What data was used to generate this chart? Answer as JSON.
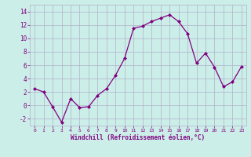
{
  "x": [
    0,
    1,
    2,
    3,
    4,
    5,
    6,
    7,
    8,
    9,
    10,
    11,
    12,
    13,
    14,
    15,
    16,
    17,
    18,
    19,
    20,
    21,
    22,
    23
  ],
  "y": [
    2.5,
    2.0,
    -0.2,
    -2.5,
    1.0,
    -0.3,
    -0.2,
    1.5,
    2.5,
    4.5,
    7.0,
    11.5,
    11.8,
    12.5,
    13.0,
    13.5,
    12.5,
    10.7,
    6.3,
    7.8,
    5.7,
    2.8,
    3.5,
    5.8
  ],
  "line_color": "#800080",
  "marker": "D",
  "marker_size": 2,
  "linewidth": 0.9,
  "xlim": [
    -0.5,
    23.5
  ],
  "ylim": [
    -3,
    15
  ],
  "yticks": [
    -2,
    0,
    2,
    4,
    6,
    8,
    10,
    12,
    14
  ],
  "xticks": [
    0,
    1,
    2,
    3,
    4,
    5,
    6,
    7,
    8,
    9,
    10,
    11,
    12,
    13,
    14,
    15,
    16,
    17,
    18,
    19,
    20,
    21,
    22,
    23
  ],
  "xlabel": "Windchill (Refroidissement éolien,°C)",
  "background_color": "#cceee8",
  "grid_color": "#b0b0cc",
  "tick_color": "#800080",
  "label_color": "#800080"
}
